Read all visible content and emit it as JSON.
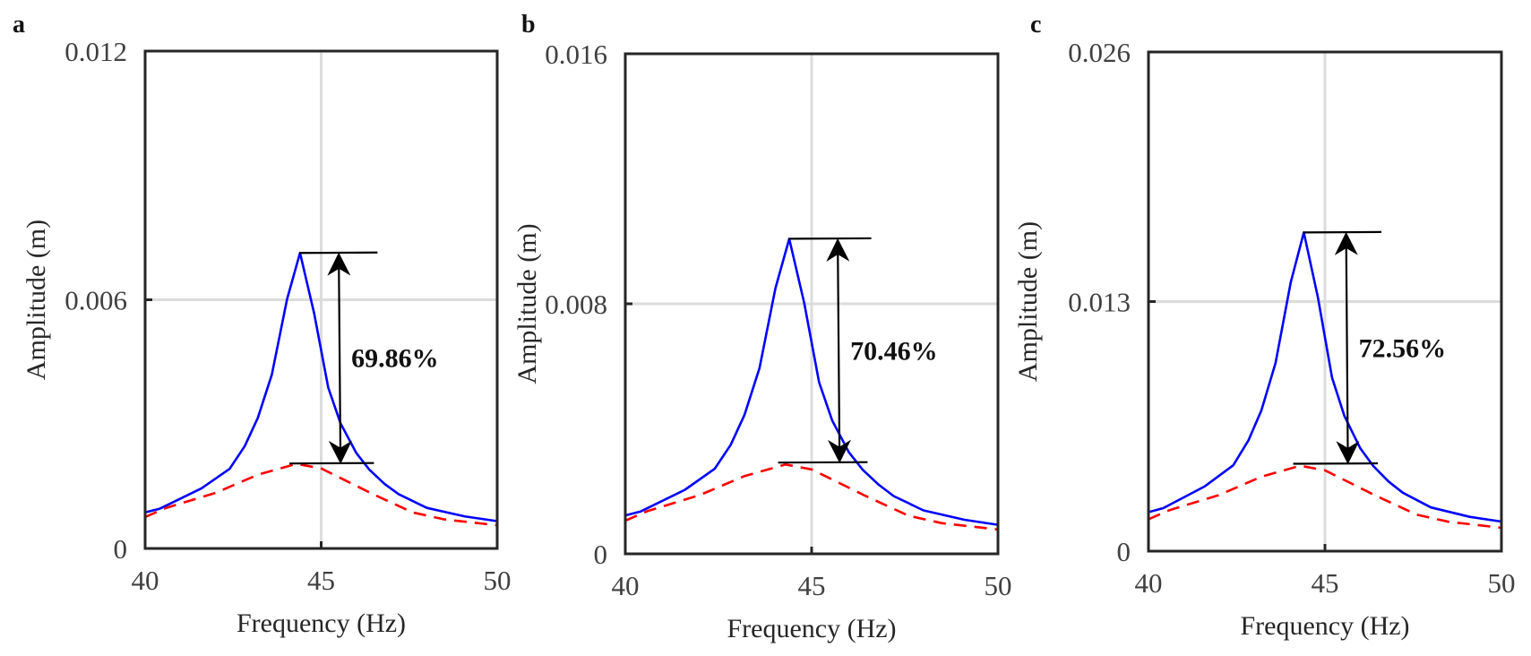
{
  "chart_data": [
    {
      "panel": "a",
      "type": "line",
      "xlabel": "Frequency (Hz)",
      "ylabel": "Amplitude (m)",
      "xlim": [
        40,
        50
      ],
      "ylim": [
        0,
        0.012
      ],
      "xticks": [
        "40",
        "45",
        "50"
      ],
      "yticks": [
        "0",
        "0.006",
        "0.012"
      ],
      "grid": true,
      "annotation": {
        "text": "69.86%",
        "top": 0.00713,
        "bottom": 0.00205,
        "arrow_x": 45.5
      },
      "series": [
        {
          "style": "solid",
          "color": "#0000ff",
          "x": [
            40,
            40.42,
            41.6,
            42.4,
            42.83,
            43.2,
            43.6,
            44.03,
            44.4,
            44.8,
            45.2,
            45.55,
            46.0,
            46.37,
            46.8,
            47.2,
            48.0,
            49.1,
            50
          ],
          "y": [
            0.00087,
            0.00096,
            0.00145,
            0.00192,
            0.00247,
            0.00315,
            0.0042,
            0.00601,
            0.00713,
            0.00568,
            0.00388,
            0.00302,
            0.0023,
            0.0019,
            0.00156,
            0.00131,
            0.00098,
            0.00077,
            0.00066
          ]
        },
        {
          "style": "dashed",
          "color": "#ff0000",
          "x": [
            40,
            40.6,
            42.0,
            43.2,
            44.3,
            45.0,
            46.4,
            47.6,
            48.5,
            50
          ],
          "y": [
            0.00076,
            0.00098,
            0.00134,
            0.00178,
            0.00204,
            0.00193,
            0.00134,
            0.00087,
            0.0007,
            0.00056
          ]
        }
      ]
    },
    {
      "panel": "b",
      "type": "line",
      "xlabel": "Frequency (Hz)",
      "ylabel": "Amplitude (m)",
      "xlim": [
        40,
        50
      ],
      "ylim": [
        0,
        0.016
      ],
      "xticks": [
        "40",
        "45",
        "50"
      ],
      "yticks": [
        "0",
        "0.008",
        "0.016"
      ],
      "grid": true,
      "annotation": {
        "text": "70.46%",
        "top": 0.01008,
        "bottom": 0.00292,
        "arrow_x": 45.7
      },
      "series": [
        {
          "style": "solid",
          "color": "#0000ff",
          "x": [
            40,
            40.42,
            41.6,
            42.4,
            42.83,
            43.2,
            43.6,
            44.03,
            44.4,
            44.8,
            45.2,
            45.55,
            46.0,
            46.37,
            46.8,
            47.2,
            48.0,
            49.1,
            50
          ],
          "y": [
            0.00123,
            0.00136,
            0.00205,
            0.00272,
            0.00349,
            0.00445,
            0.00594,
            0.0085,
            0.01008,
            0.00803,
            0.00549,
            0.00427,
            0.00325,
            0.00269,
            0.00221,
            0.00185,
            0.00139,
            0.00109,
            0.00093
          ]
        },
        {
          "style": "dashed",
          "color": "#ff0000",
          "x": [
            40,
            40.6,
            42.0,
            43.2,
            44.3,
            45.0,
            46.4,
            47.6,
            48.5,
            50
          ],
          "y": [
            0.00106,
            0.00137,
            0.00188,
            0.00249,
            0.00286,
            0.0027,
            0.00188,
            0.00122,
            0.00098,
            0.00078
          ]
        }
      ]
    },
    {
      "panel": "c",
      "type": "line",
      "xlabel": "Frequency (Hz)",
      "ylabel": "Amplitude (m)",
      "xlim": [
        40,
        50
      ],
      "ylim": [
        0,
        0.026
      ],
      "xticks": [
        "40",
        "45",
        "50"
      ],
      "yticks": [
        "0",
        "0.013",
        "0.026"
      ],
      "grid": true,
      "annotation": {
        "text": "72.56%",
        "top": 0.0166,
        "bottom": 0.00455,
        "arrow_x": 45.6
      },
      "series": [
        {
          "style": "solid",
          "color": "#0000ff",
          "x": [
            40,
            40.42,
            41.6,
            42.4,
            42.83,
            43.2,
            43.6,
            44.03,
            44.4,
            44.8,
            45.2,
            45.55,
            46.0,
            46.37,
            46.8,
            47.2,
            48.0,
            49.1,
            50
          ],
          "y": [
            0.00203,
            0.00224,
            0.00338,
            0.00447,
            0.00576,
            0.00734,
            0.00979,
            0.014,
            0.0166,
            0.01323,
            0.00904,
            0.00704,
            0.00536,
            0.00443,
            0.00363,
            0.00305,
            0.00228,
            0.00179,
            0.00154
          ]
        },
        {
          "style": "dashed",
          "color": "#ff0000",
          "x": [
            40,
            40.6,
            42.0,
            43.2,
            44.3,
            45.0,
            46.4,
            47.6,
            48.5,
            50
          ],
          "y": [
            0.00166,
            0.00214,
            0.00292,
            0.00388,
            0.00445,
            0.00421,
            0.00292,
            0.0019,
            0.00153,
            0.00122
          ]
        }
      ]
    }
  ]
}
